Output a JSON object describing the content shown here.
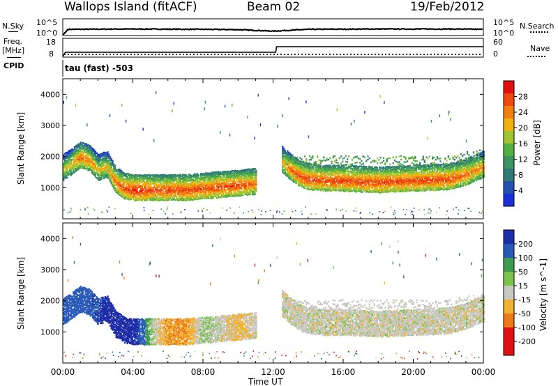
{
  "header": {
    "station": "Wallops Island (fitACF)",
    "beam": "Beam 02",
    "date": "19/Feb/2012"
  },
  "strips": {
    "nsky_label": "N.Sky",
    "nsearch_label": "N.Search",
    "nsky_ticks": [
      "10^5",
      "10^0"
    ],
    "freq_label": "Freq.",
    "freq_unit": "[MHz]",
    "freq_ticks": [
      "18",
      "8"
    ],
    "nave_label": "Nave",
    "nave_ticks": [
      "60",
      "0"
    ],
    "cpid_label": "CPID",
    "cpid_text": "tau (fast) -503"
  },
  "chart_data": [
    {
      "type": "line",
      "title": "N.Sky / N.Search",
      "ylim_log10": [
        0,
        5
      ],
      "series": [
        {
          "name": "N.Sky",
          "x_hours": [
            0,
            0.1,
            0.3,
            4,
            8,
            10,
            12,
            14,
            18,
            22,
            24
          ],
          "values_log10": [
            0,
            0.5,
            1.8,
            1.9,
            1.8,
            1.7,
            1.2,
            1.8,
            1.9,
            1.9,
            1.8
          ]
        }
      ]
    },
    {
      "type": "line",
      "title": "Freq. / Nave",
      "series": [
        {
          "name": "Freq.",
          "unit": "MHz",
          "ylim": [
            8,
            18
          ],
          "x_hours": [
            0,
            0.15,
            12.15,
            12.2,
            24
          ],
          "values": [
            8,
            10.4,
            10.4,
            13.6,
            13.6
          ]
        },
        {
          "name": "Nave",
          "ylim": [
            0,
            60
          ],
          "x_hours": [
            0,
            24
          ],
          "values": [
            7,
            7
          ]
        }
      ]
    },
    {
      "type": "heatmap",
      "panel": "power",
      "ylabel": "Slant Range [km]",
      "xlim_hours": [
        0,
        24
      ],
      "ylim": [
        0,
        4500
      ],
      "yticks": [
        1000,
        2000,
        3000,
        4000
      ],
      "colorbar": {
        "label": "Power [dB]",
        "ticks": [
          "4",
          "8",
          "12",
          "16",
          "20",
          "24",
          "28"
        ],
        "range": [
          0,
          32
        ]
      },
      "features": [
        {
          "x_hours": [
            0,
            0.5,
            1,
            1.5,
            2,
            2.5,
            3,
            3.5,
            4,
            5,
            6,
            7,
            8,
            9,
            10,
            11
          ],
          "range_km": [
            1600,
            1800,
            2000,
            1900,
            1600,
            1700,
            1200,
            1000,
            950,
            950,
            950,
            950,
            1000,
            1050,
            1100,
            1150
          ],
          "power_db": [
            20,
            22,
            26,
            24,
            22,
            22,
            26,
            28,
            30,
            28,
            28,
            28,
            28,
            28,
            28,
            26
          ]
        },
        {
          "x_hours": [
            12.5,
            13,
            13.5,
            14,
            15,
            16,
            18,
            20,
            22,
            23,
            24
          ],
          "range_km": [
            1850,
            1600,
            1400,
            1300,
            1250,
            1250,
            1200,
            1250,
            1300,
            1450,
            1700
          ],
          "power_db": [
            22,
            26,
            28,
            28,
            28,
            28,
            28,
            28,
            28,
            26,
            24
          ]
        }
      ]
    },
    {
      "type": "heatmap",
      "panel": "velocity",
      "ylabel": "Slant Range [km]",
      "xlabel": "Time UT",
      "xlim_hours": [
        0,
        24
      ],
      "ylim": [
        0,
        4500
      ],
      "yticks": [
        1000,
        2000,
        3000,
        4000
      ],
      "xticks": [
        "00:00",
        "04:00",
        "08:00",
        "12:00",
        "16:00",
        "20:00",
        "00:00"
      ],
      "colorbar": {
        "label": "Velocity [m s^-1]",
        "ticks": [
          "200",
          "100",
          "50",
          "15",
          "-15",
          "-50",
          "-100",
          "-200"
        ]
      },
      "features": [
        {
          "x_hours": [
            1,
            2,
            3,
            4,
            5,
            6,
            7,
            8,
            9,
            10,
            11
          ],
          "velocity_ms": [
            100,
            150,
            200,
            200,
            20,
            -50,
            -50,
            20,
            0,
            -30,
            0
          ]
        },
        {
          "x_hours": [
            12.5,
            16,
            20,
            24
          ],
          "velocity_ms": [
            0,
            0,
            0,
            0
          ]
        }
      ]
    }
  ]
}
